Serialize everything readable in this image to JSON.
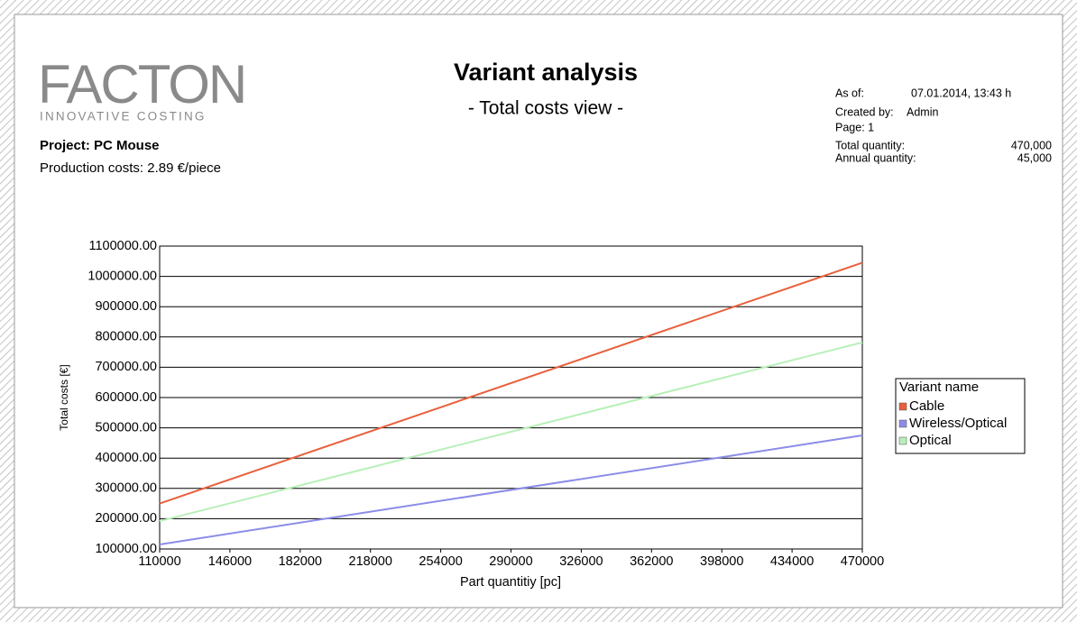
{
  "header": {
    "logo": "FACTON",
    "logo_tagline": "INNOVATIVE COSTING",
    "project": "Project: PC Mouse",
    "production_costs": "Production costs: 2.89 €/piece",
    "title": "Variant analysis",
    "subtitle": "- Total costs view -",
    "info": {
      "as_of_label": "As of:",
      "as_of": "07.01.2014, 13:43 h",
      "created_by_label": "Created by:",
      "created_by": "Admin",
      "page": "Page: 1",
      "total_quantity_label": "Total quantity:",
      "total_quantity": "470,000",
      "annual_quantity_label": "Annual quantity:",
      "annual_quantity": "45,000"
    }
  },
  "chart_data": {
    "type": "line",
    "x_label": "Part quantitiy [pc]",
    "y_label": "Total costs [€]",
    "legend_title": "Variant name",
    "x": [
      110000,
      470000
    ],
    "series": [
      {
        "name": "Cable",
        "color": "#e8603c",
        "values": [
          250000,
          1045000
        ]
      },
      {
        "name": "Wireless/Optical",
        "color": "#8c8ce8",
        "values": [
          115000,
          475000
        ]
      },
      {
        "name": "Optical",
        "color": "#b8f0b8",
        "values": [
          192000,
          782000
        ]
      }
    ],
    "xlim": [
      110000,
      470000
    ],
    "xticks": [
      110000,
      146000,
      182000,
      218000,
      254000,
      290000,
      326000,
      362000,
      398000,
      434000,
      470000
    ],
    "ylim": [
      100000,
      1100000
    ],
    "yticks": [
      {
        "value": 100000,
        "label": "100000.00"
      },
      {
        "value": 200000,
        "label": "200000.00"
      },
      {
        "value": 300000,
        "label": "300000.00"
      },
      {
        "value": 400000,
        "label": "400000.00"
      },
      {
        "value": 500000,
        "label": "500000.00"
      },
      {
        "value": 600000,
        "label": "600000.00"
      },
      {
        "value": 700000,
        "label": "700000.00"
      },
      {
        "value": 800000,
        "label": "800000.00"
      },
      {
        "value": 900000,
        "label": "900000.00"
      },
      {
        "value": 1000000,
        "label": "1000000.00"
      },
      {
        "value": 1100000,
        "label": "1100000.00"
      }
    ],
    "grid": true
  }
}
